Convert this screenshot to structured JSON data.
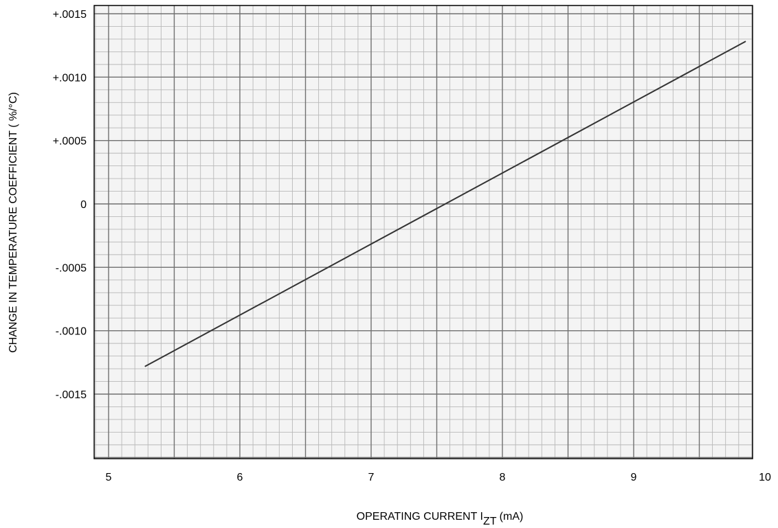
{
  "chart_data": {
    "type": "line",
    "title": "",
    "xlabel": {
      "main": "OPERATING CURRENT I",
      "subscript": "ZT",
      "unit": " (mA)"
    },
    "ylabel": "CHANGE IN TEMPERATURE COEFFICIENT  ( %/°C)",
    "xlim": [
      5,
      10
    ],
    "ylim": [
      -0.002,
      0.0015
    ],
    "x_ticks": [
      {
        "value": 5,
        "label": "5"
      },
      {
        "value": 6,
        "label": "6"
      },
      {
        "value": 7,
        "label": "7"
      },
      {
        "value": 8,
        "label": "8"
      },
      {
        "value": 9,
        "label": "9"
      },
      {
        "value": 10,
        "label": "10"
      }
    ],
    "y_ticks": [
      {
        "value": 0.0015,
        "label": "+.0015"
      },
      {
        "value": 0.001,
        "label": "+.0010"
      },
      {
        "value": 0.0005,
        "label": "+.0005"
      },
      {
        "value": 0,
        "label": "0"
      },
      {
        "value": -0.0005,
        "label": "-.0005"
      },
      {
        "value": -0.001,
        "label": "-.0010"
      },
      {
        "value": -0.0015,
        "label": "-.0015"
      }
    ],
    "grid": true,
    "legend": "none",
    "series": [
      {
        "x": [
          5.28,
          9.85
        ],
        "y": [
          -0.00128,
          0.00128
        ]
      }
    ],
    "colors": {
      "line": "#333333",
      "grid_minor": "#b8b8b8",
      "grid_major": "#707070",
      "frame": "#000000"
    }
  }
}
